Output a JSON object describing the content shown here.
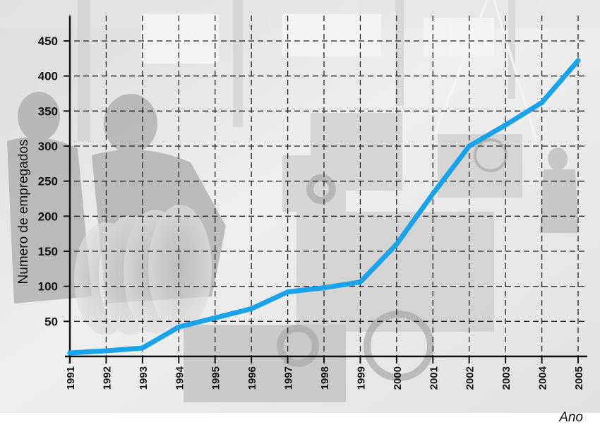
{
  "chart_data": {
    "type": "line",
    "title": "",
    "xlabel": "Ano",
    "ylabel": "Numero de empregados",
    "x": [
      "1991",
      "1992",
      "1993",
      "1994",
      "1995",
      "1996",
      "1997",
      "1998",
      "1999",
      "2000",
      "2001",
      "2002",
      "2003",
      "2004",
      "2005"
    ],
    "series": [
      {
        "name": "",
        "values": [
          5,
          8,
          12,
          42,
          55,
          68,
          92,
          98,
          106,
          160,
          232,
          300,
          330,
          362,
          422
        ],
        "color": "#1aa3e8"
      }
    ],
    "ylim": [
      0,
      450
    ],
    "yticks": [
      50,
      100,
      150,
      200,
      250,
      300,
      350,
      400,
      450
    ],
    "grid": true,
    "background": "photo of machine shop workers (grayscale)",
    "grid_color": "#222222",
    "axis_color": "#111111"
  }
}
